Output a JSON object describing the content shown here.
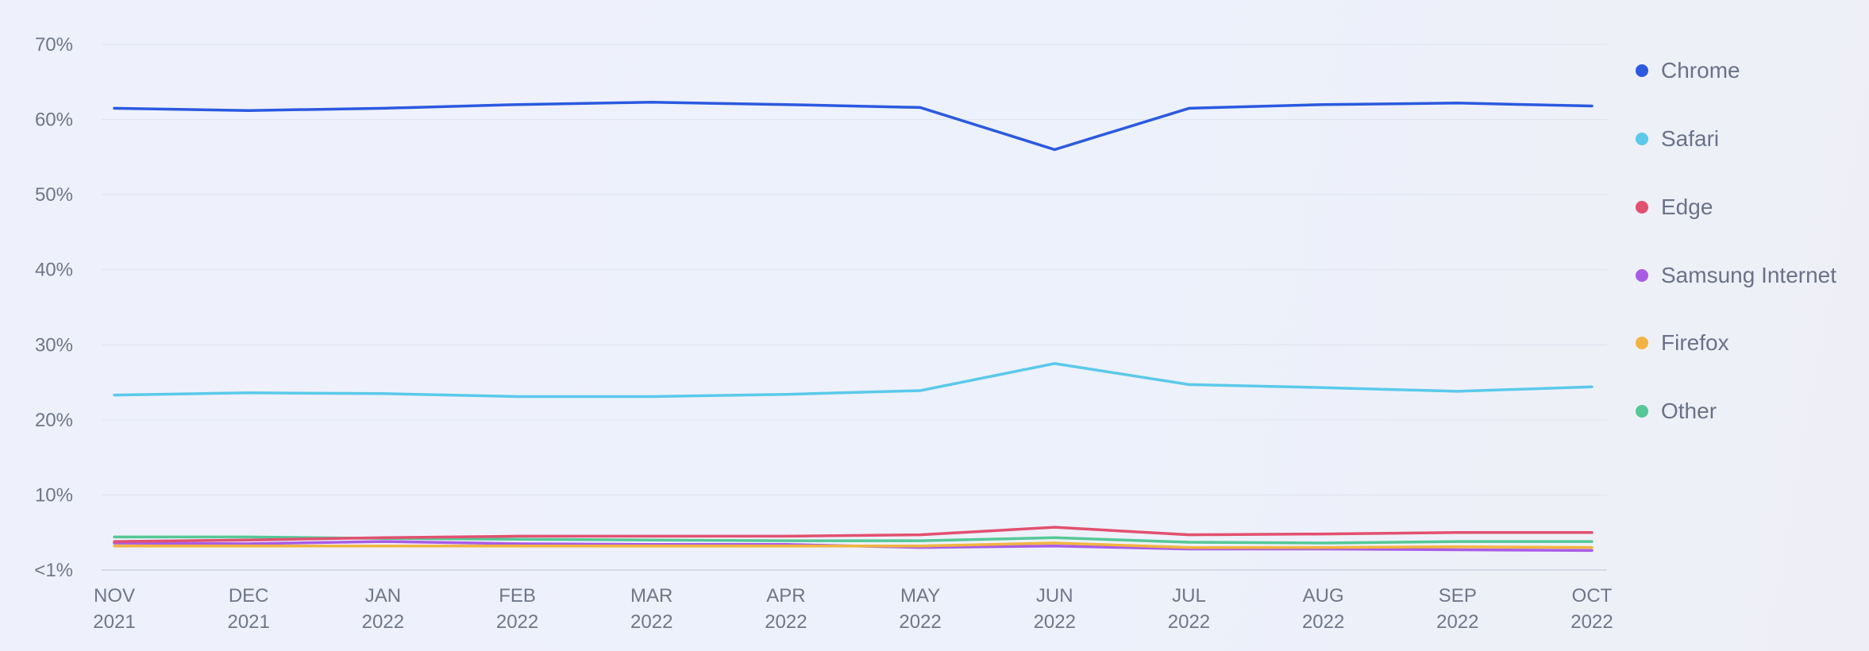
{
  "chart_data": {
    "type": "line",
    "title": "",
    "xlabel": "",
    "ylabel": "",
    "x": [
      [
        "NOV",
        "2021"
      ],
      [
        "DEC",
        "2021"
      ],
      [
        "JAN",
        "2022"
      ],
      [
        "FEB",
        "2022"
      ],
      [
        "MAR",
        "2022"
      ],
      [
        "APR",
        "2022"
      ],
      [
        "MAY",
        "2022"
      ],
      [
        "JUN",
        "2022"
      ],
      [
        "JUL",
        "2022"
      ],
      [
        "AUG",
        "2022"
      ],
      [
        "SEP",
        "2022"
      ],
      [
        "OCT",
        "2022"
      ]
    ],
    "y_ticks": [
      {
        "value": 0,
        "label": "<1%"
      },
      {
        "value": 10,
        "label": "10%"
      },
      {
        "value": 20,
        "label": "20%"
      },
      {
        "value": 30,
        "label": "30%"
      },
      {
        "value": 40,
        "label": "40%"
      },
      {
        "value": 50,
        "label": "50%"
      },
      {
        "value": 60,
        "label": "60%"
      },
      {
        "value": 70,
        "label": "70%"
      }
    ],
    "ylim": [
      0,
      70
    ],
    "grid": true,
    "legend_position": "right",
    "series": [
      {
        "name": "Chrome",
        "color": "#2b59e0",
        "values": [
          61.5,
          61.2,
          61.5,
          62.0,
          62.3,
          62.0,
          61.6,
          56.0,
          61.5,
          62.0,
          62.2,
          61.8
        ]
      },
      {
        "name": "Safari",
        "color": "#5bc9ea",
        "values": [
          23.3,
          23.6,
          23.5,
          23.1,
          23.1,
          23.4,
          23.9,
          27.5,
          24.7,
          24.3,
          23.8,
          24.4
        ]
      },
      {
        "name": "Edge",
        "color": "#e2506f",
        "values": [
          3.8,
          4.0,
          4.3,
          4.5,
          4.5,
          4.5,
          4.7,
          5.7,
          4.7,
          4.8,
          5.0,
          5.0
        ]
      },
      {
        "name": "Samsung Internet",
        "color": "#a85ce6",
        "values": [
          3.6,
          3.5,
          3.8,
          3.5,
          3.4,
          3.4,
          3.0,
          3.2,
          2.8,
          2.8,
          2.7,
          2.6
        ]
      },
      {
        "name": "Firefox",
        "color": "#f2b440",
        "values": [
          3.2,
          3.2,
          3.2,
          3.2,
          3.2,
          3.2,
          3.2,
          3.6,
          3.0,
          3.0,
          3.1,
          3.0
        ]
      },
      {
        "name": "Other",
        "color": "#55c896",
        "values": [
          4.4,
          4.4,
          4.2,
          4.1,
          4.0,
          3.9,
          3.9,
          4.3,
          3.7,
          3.6,
          3.8,
          3.8
        ]
      }
    ]
  },
  "colors": {
    "grid": "#dfe3ee",
    "baseline": "#cdd2e0",
    "text": "#6f7688"
  }
}
